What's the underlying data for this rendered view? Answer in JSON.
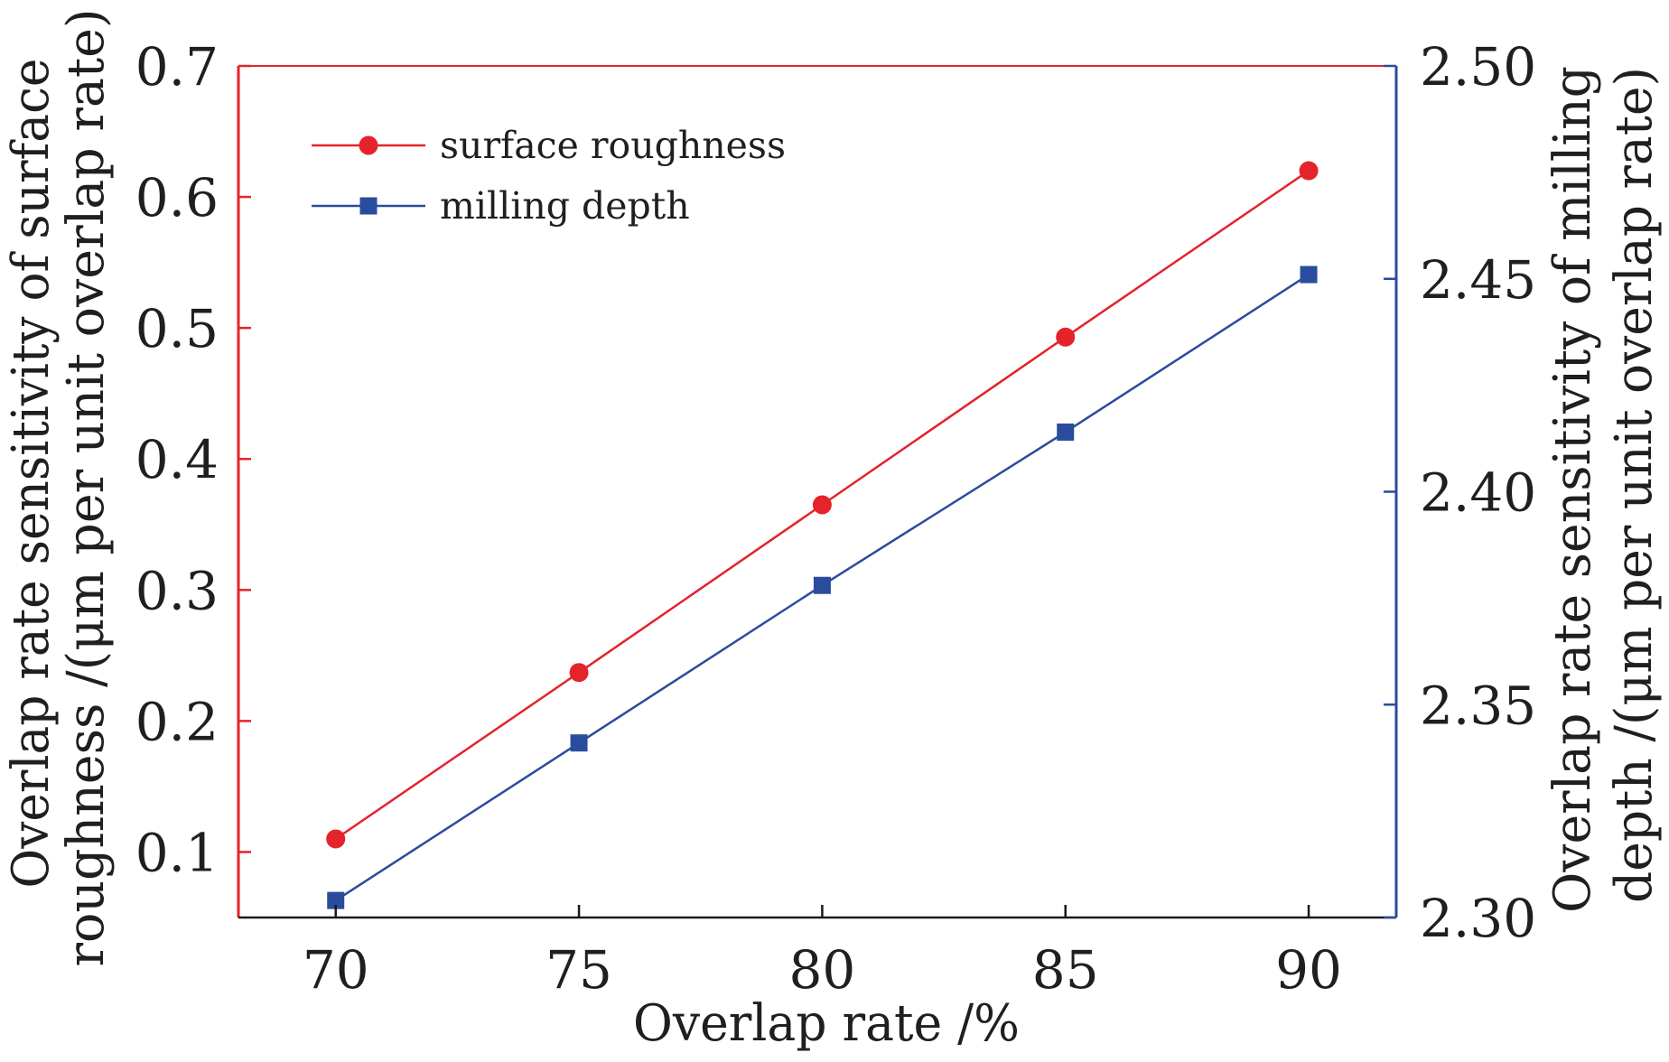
{
  "chart_data": {
    "type": "line",
    "xlabel": "Overlap rate /%",
    "ylabel_left": [
      "Overlap rate sensitivity of surface",
      "roughness /(μm per unit overlap rate)"
    ],
    "ylabel_right": [
      "Overlap rate sensitivity of milling",
      "depth /(μm per unit overlap rate)"
    ],
    "x": [
      70,
      75,
      80,
      85,
      90
    ],
    "xlim": [
      68,
      91.8
    ],
    "ylim_left": [
      0.05,
      0.7
    ],
    "ylim_right": [
      2.3,
      2.5
    ],
    "xticks": [
      "70",
      "75",
      "80",
      "85",
      "90"
    ],
    "yticks_left": [
      "0.1",
      "0.2",
      "0.3",
      "0.4",
      "0.5",
      "0.6",
      "0.7"
    ],
    "yticks_right": [
      "2.30",
      "2.35",
      "2.40",
      "2.45",
      "2.50"
    ],
    "series": [
      {
        "name": "surface roughness",
        "axis": "left",
        "marker": "circle",
        "color": "#e5232b",
        "values": [
          0.11,
          0.237,
          0.365,
          0.493,
          0.62
        ]
      },
      {
        "name": "milling depth",
        "axis": "right",
        "marker": "square",
        "color": "#2a4c9c",
        "values": [
          2.304,
          2.341,
          2.378,
          2.414,
          2.451
        ]
      }
    ],
    "legend_position": "top-left",
    "grid": false,
    "x_axis_color": "#1a1a1a"
  }
}
